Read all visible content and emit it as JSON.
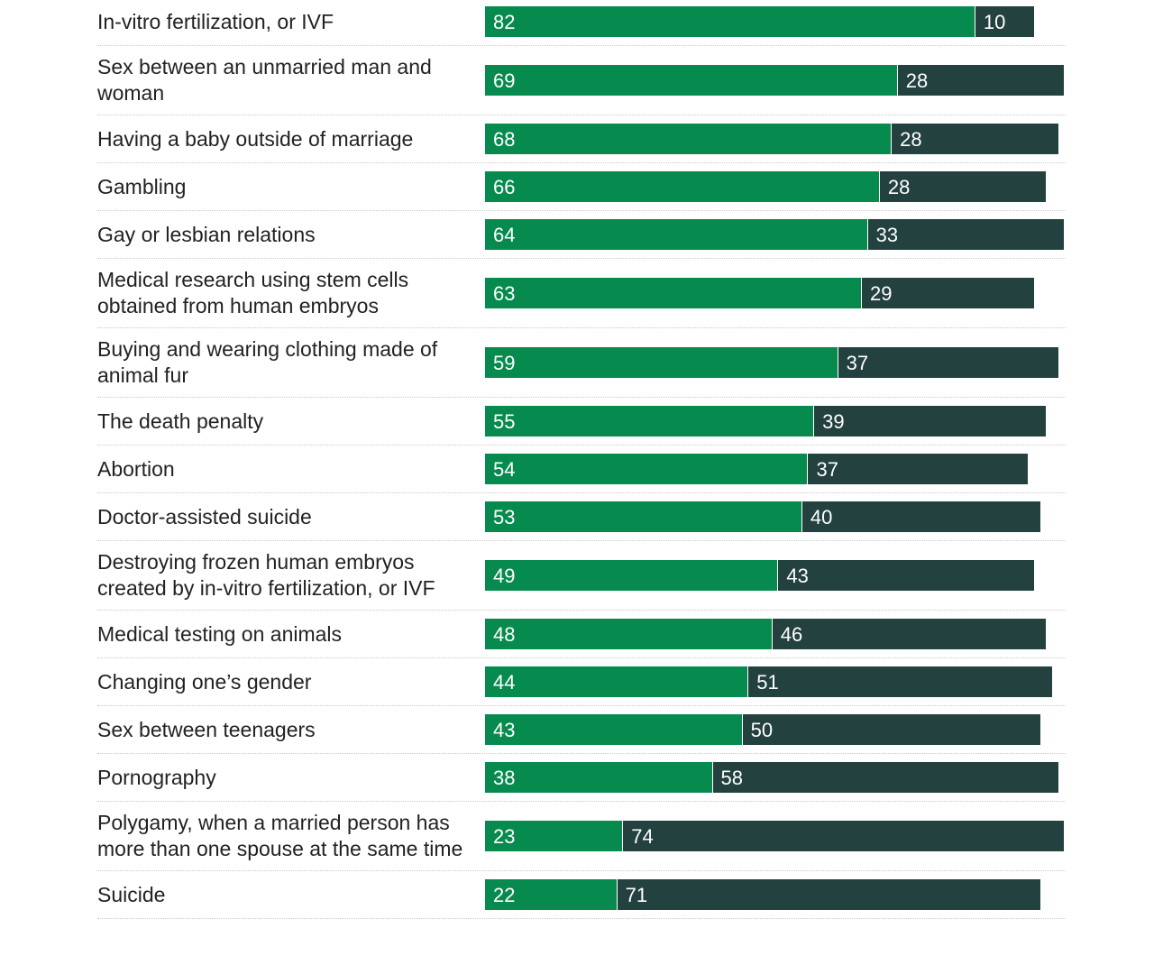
{
  "chart_data": {
    "type": "bar",
    "orientation": "horizontal",
    "stacked": true,
    "categories": [
      "In-vitro fertilization, or IVF",
      "Sex between an unmarried man and woman",
      "Having a baby outside of marriage",
      "Gambling",
      "Gay or lesbian relations",
      "Medical research using stem cells obtained from human embryos",
      "Buying and wearing clothing made of animal fur",
      "The death penalty",
      "Abortion",
      "Doctor-assisted suicide",
      "Destroying frozen human embryos created by in-vitro fertilization, or IVF",
      "Medical testing on animals",
      "Changing one’s gender",
      "Sex between teenagers",
      "Pornography",
      "Polygamy, when a married person has more than one spouse at the same time",
      "Suicide"
    ],
    "series": [
      {
        "color": "#078a4e",
        "values": [
          82,
          69,
          68,
          66,
          64,
          63,
          59,
          55,
          54,
          53,
          49,
          48,
          44,
          43,
          38,
          23,
          22
        ]
      },
      {
        "color": "#23413f",
        "values": [
          10,
          28,
          28,
          28,
          33,
          29,
          37,
          39,
          37,
          40,
          43,
          46,
          51,
          50,
          58,
          74,
          71
        ]
      }
    ],
    "xlim": [
      0,
      100
    ],
    "grid": false
  }
}
